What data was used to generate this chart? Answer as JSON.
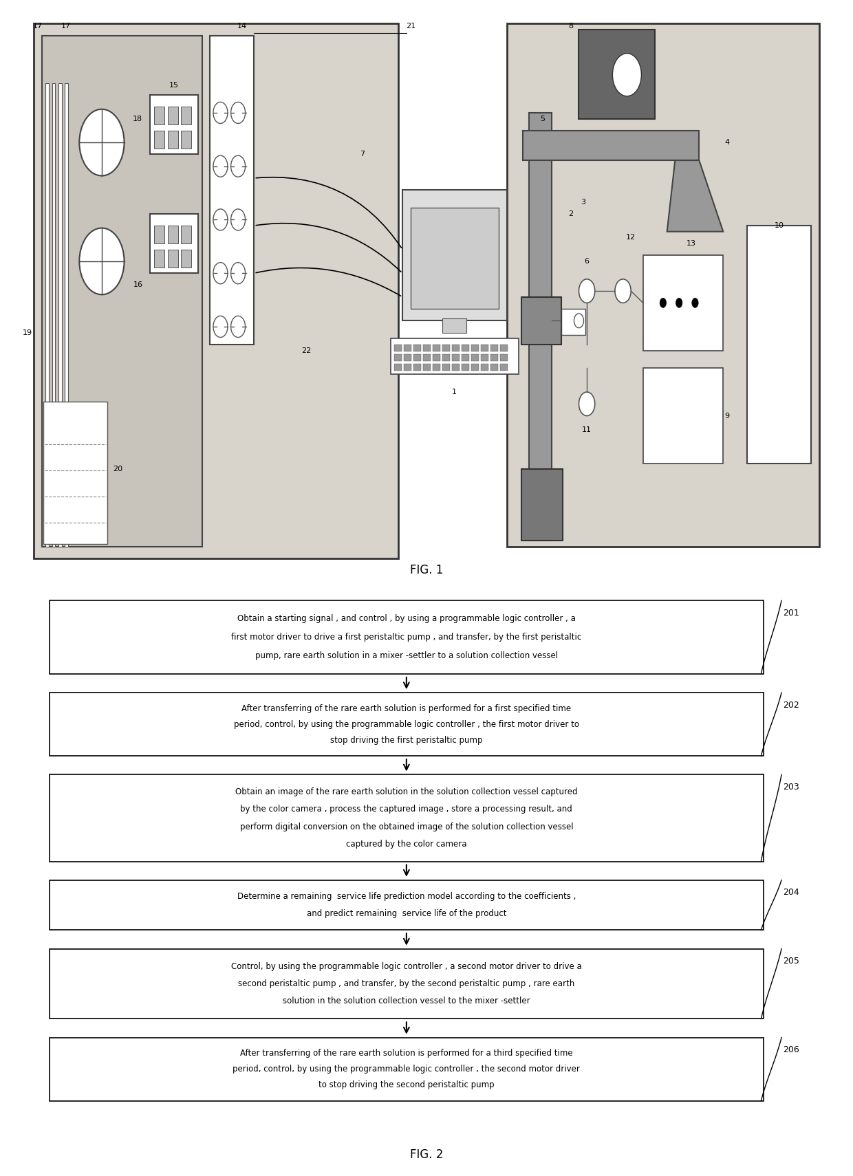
{
  "fig1_label": "FIG. 1",
  "fig2_label": "FIG. 2",
  "bg_color": "#f2f0eb",
  "flowchart_steps": [
    {
      "id": "201",
      "text": "Obtain a starting signal , and control , by using a programmable logic controller , a\nfirst motor driver to drive a first peristaltic pump , and transfer, by the first peristaltic\npump, rare earth solution in a mixer -settler to a solution collection vessel",
      "nlines": 3
    },
    {
      "id": "202",
      "text": "After transferring of the rare earth solution is performed for a first specified time\nperiod, control, by using the programmable logic controller , the first motor driver to\nstop driving the first peristaltic pump",
      "nlines": 3
    },
    {
      "id": "203",
      "text": "Obtain an image of the rare earth solution in the solution collection vessel captured\nby the color camera , process the captured image , store a processing result, and\nperform digital conversion on the obtained image of the solution collection vessel\ncaptured by the color camera",
      "nlines": 4
    },
    {
      "id": "204",
      "text": "Determine a remaining  service life prediction model according to the coefficients ,\nand predict remaining  service life of the product",
      "nlines": 2
    },
    {
      "id": "205",
      "text": "Control, by using the programmable logic controller , a second motor driver to drive a\nsecond peristaltic pump , and transfer, by the second peristaltic pump , rare earth\nsolution in the solution collection vessel to the mixer -settler",
      "nlines": 3
    },
    {
      "id": "206",
      "text": "After transferring of the rare earth solution is performed for a third specified time\nperiod, control, by using the programmable logic controller , the second motor driver\nto stop driving the second peristaltic pump",
      "nlines": 3
    }
  ]
}
